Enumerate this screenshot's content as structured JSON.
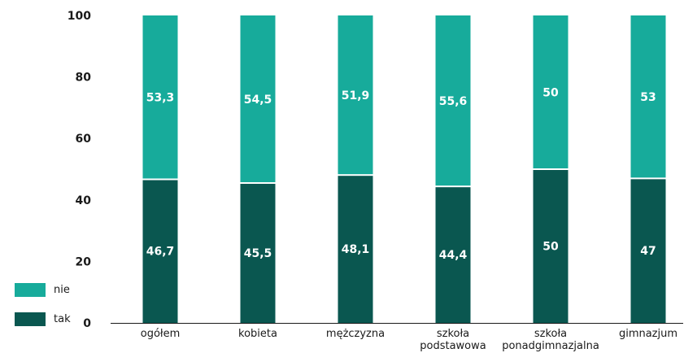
{
  "chart_data": {
    "type": "bar",
    "stacked": true,
    "categories": [
      "ogółem",
      "kobieta",
      "mężczyzna",
      "szkoła podstawowa",
      "szkoła ponadgimnazjalna",
      "gimnazjum"
    ],
    "category_lines": [
      [
        "ogółem"
      ],
      [
        "kobieta"
      ],
      [
        "mężczyzna"
      ],
      [
        "szkoła",
        "podstawowa"
      ],
      [
        "szkoła",
        "ponadgimnazjalna"
      ],
      [
        "gimnazjum"
      ]
    ],
    "series": [
      {
        "name": "tak",
        "color": "#0a5750",
        "values": [
          46.7,
          45.5,
          48.1,
          44.4,
          50,
          47
        ],
        "labels": [
          "46,7",
          "45,5",
          "48,1",
          "44,4",
          "50",
          "47"
        ]
      },
      {
        "name": "nie",
        "color": "#17ab9b",
        "values": [
          53.3,
          54.5,
          51.9,
          55.6,
          50,
          53
        ],
        "labels": [
          "53,3",
          "54,5",
          "51,9",
          "55,6",
          "50",
          "53"
        ]
      }
    ],
    "ylim": [
      0,
      100
    ],
    "yticks": [
      "0",
      "20",
      "40",
      "60",
      "80",
      "100"
    ],
    "grid": false,
    "legend_position": "bottom-left"
  },
  "legend": {
    "nie_label": "nie",
    "tak_label": "tak"
  },
  "colors": {
    "tak": "#0a5750",
    "nie": "#17ab9b"
  }
}
